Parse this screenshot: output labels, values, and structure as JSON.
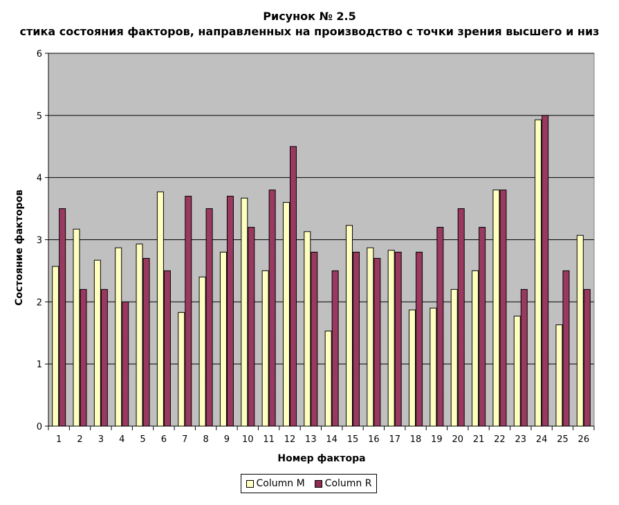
{
  "chart_data": {
    "type": "bar",
    "title": "Рисунок № 2.5",
    "subtitle": "стика состояния факторов, направленных на производство с точки зрения высшего и низ",
    "xlabel": "Номер фактора",
    "ylabel": "Состояние факторов",
    "ylim": [
      0,
      6
    ],
    "yticks": [
      "0",
      "1",
      "2",
      "3",
      "4",
      "5",
      "6"
    ],
    "grid": true,
    "legend_position": "bottom",
    "categories": [
      "1",
      "2",
      "3",
      "4",
      "5",
      "6",
      "7",
      "8",
      "9",
      "10",
      "11",
      "12",
      "13",
      "14",
      "15",
      "16",
      "17",
      "18",
      "19",
      "20",
      "21",
      "22",
      "23",
      "24",
      "25",
      "26"
    ],
    "series": [
      {
        "name": "Column M",
        "color": "#ffffc0",
        "values": [
          2.57,
          3.17,
          2.67,
          2.87,
          2.93,
          3.77,
          1.83,
          2.4,
          2.8,
          3.67,
          2.5,
          3.6,
          3.13,
          1.53,
          3.23,
          2.87,
          2.83,
          1.87,
          1.9,
          2.2,
          2.5,
          3.8,
          1.77,
          4.93,
          1.63,
          3.07
        ]
      },
      {
        "name": "Column R",
        "color": "#8e2c52",
        "values": [
          3.5,
          2.2,
          2.2,
          2.0,
          2.7,
          2.5,
          3.7,
          3.5,
          3.7,
          3.2,
          3.8,
          4.5,
          2.8,
          2.5,
          2.8,
          2.7,
          2.8,
          2.8,
          3.2,
          3.5,
          3.2,
          3.8,
          2.2,
          5.0,
          2.5,
          2.2
        ]
      }
    ],
    "plot_background": "#c0c0c0"
  }
}
